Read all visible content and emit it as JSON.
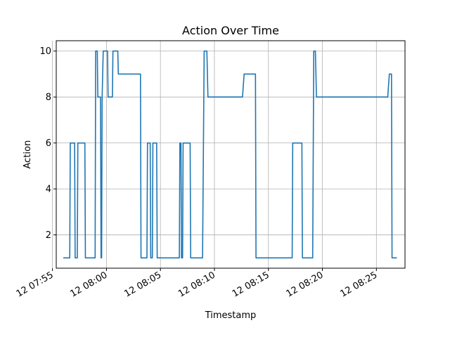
{
  "chart_data": {
    "type": "line",
    "title": "Action Over Time",
    "xlabel": "Timestamp",
    "ylabel": "Action",
    "x_unit": "minutes after 12 07:55",
    "xlim": [
      0.35,
      32.65
    ],
    "ylim": [
      0.55,
      10.45
    ],
    "grid": true,
    "x_ticks": [
      {
        "value": 0,
        "label": "12 07:55"
      },
      {
        "value": 5,
        "label": "12 08:00"
      },
      {
        "value": 10,
        "label": "12 08:05"
      },
      {
        "value": 15,
        "label": "12 08:10"
      },
      {
        "value": 20,
        "label": "12 08:15"
      },
      {
        "value": 25,
        "label": "12 08:20"
      },
      {
        "value": 30,
        "label": "12 08:25"
      }
    ],
    "y_ticks": [
      2,
      4,
      6,
      8,
      10
    ],
    "series": [
      {
        "color": "#1f77b4",
        "points": [
          [
            1.0,
            1
          ],
          [
            1.6,
            1
          ],
          [
            1.65,
            6
          ],
          [
            2.05,
            6
          ],
          [
            2.1,
            1
          ],
          [
            2.3,
            1
          ],
          [
            2.35,
            6
          ],
          [
            3.0,
            6
          ],
          [
            3.05,
            1
          ],
          [
            3.95,
            1
          ],
          [
            4.0,
            10
          ],
          [
            4.15,
            10
          ],
          [
            4.2,
            8
          ],
          [
            4.45,
            8
          ],
          [
            4.5,
            1
          ],
          [
            4.55,
            1
          ],
          [
            4.6,
            8
          ],
          [
            4.7,
            10
          ],
          [
            5.1,
            10
          ],
          [
            5.15,
            8
          ],
          [
            5.55,
            8
          ],
          [
            5.6,
            10
          ],
          [
            6.05,
            10
          ],
          [
            6.1,
            9
          ],
          [
            8.15,
            9
          ],
          [
            8.2,
            1
          ],
          [
            8.75,
            1
          ],
          [
            8.8,
            6
          ],
          [
            9.05,
            6
          ],
          [
            9.1,
            1
          ],
          [
            9.25,
            1
          ],
          [
            9.3,
            6
          ],
          [
            9.65,
            6
          ],
          [
            9.7,
            1
          ],
          [
            11.75,
            1
          ],
          [
            11.8,
            6
          ],
          [
            11.9,
            6
          ],
          [
            11.95,
            1
          ],
          [
            12.05,
            1
          ],
          [
            12.1,
            6
          ],
          [
            12.75,
            6
          ],
          [
            12.8,
            1
          ],
          [
            13.9,
            1
          ],
          [
            14.05,
            10
          ],
          [
            14.3,
            10
          ],
          [
            14.4,
            8
          ],
          [
            17.6,
            8
          ],
          [
            17.75,
            9
          ],
          [
            18.8,
            9
          ],
          [
            18.85,
            1
          ],
          [
            22.2,
            1
          ],
          [
            22.25,
            6
          ],
          [
            23.1,
            6
          ],
          [
            23.15,
            1
          ],
          [
            24.1,
            1
          ],
          [
            24.2,
            10
          ],
          [
            24.35,
            10
          ],
          [
            24.45,
            8
          ],
          [
            31.05,
            8
          ],
          [
            31.2,
            9
          ],
          [
            31.4,
            9
          ],
          [
            31.45,
            1
          ],
          [
            31.9,
            1
          ]
        ]
      }
    ]
  }
}
